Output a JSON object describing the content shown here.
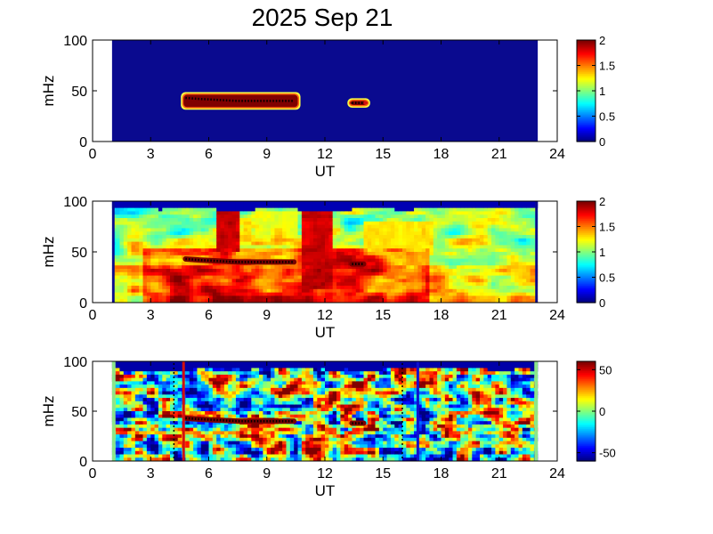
{
  "title": "2025 Sep 21",
  "colors": {
    "background": "#ffffff",
    "plot_fill": "#0a0a8f",
    "spectrum_green": "#8ee58a",
    "marker_red": "#d01010",
    "marker_blue": "#1010d0"
  },
  "colormap": "jet",
  "chart_data": [
    {
      "type": "heatmap",
      "name": "panel-1",
      "xlabel": "UT",
      "ylabel": "mHz",
      "xlim": [
        0,
        24
      ],
      "ylim": [
        0,
        100
      ],
      "xticks": [
        "0",
        "3",
        "6",
        "9",
        "12",
        "15",
        "18",
        "21",
        "24"
      ],
      "yticks": [
        "0",
        "50",
        "100"
      ],
      "data_range_ut": [
        1,
        23
      ],
      "colorbar": {
        "range": [
          0,
          2
        ],
        "ticks": [
          "0",
          "0.5",
          "1",
          "1.5",
          "2"
        ]
      },
      "features": [
        {
          "kind": "band",
          "ut": [
            4.7,
            10.6
          ],
          "mhz": [
            34,
            46
          ],
          "level": 2
        },
        {
          "kind": "band",
          "ut": [
            13.3,
            14.2
          ],
          "mhz": [
            36,
            40
          ],
          "level": 2
        }
      ],
      "tracks": [
        {
          "ut": [
            4.8,
            5.5,
            6.5,
            7.5,
            8.5,
            9.5,
            10.4
          ],
          "mhz": [
            43,
            42,
            41,
            40,
            40,
            40,
            40
          ]
        },
        {
          "ut": [
            13.4,
            13.7,
            14.0
          ],
          "mhz": [
            38,
            38,
            38
          ]
        }
      ]
    },
    {
      "type": "heatmap",
      "name": "panel-2",
      "xlabel": "UT",
      "ylabel": "mHz",
      "xlim": [
        0,
        24
      ],
      "ylim": [
        0,
        100
      ],
      "xticks": [
        "0",
        "3",
        "6",
        "9",
        "12",
        "15",
        "18",
        "21",
        "24"
      ],
      "yticks": [
        "0",
        "50",
        "100"
      ],
      "data_range_ut": [
        1,
        23
      ],
      "colorbar": {
        "range": [
          0,
          2
        ],
        "ticks": [
          "0",
          "0.5",
          "1",
          "1.5",
          "2"
        ]
      },
      "features": [
        {
          "kind": "blob",
          "ut": [
            6.4,
            7.6
          ],
          "mhz": [
            50,
            96
          ],
          "level": 2
        },
        {
          "kind": "blob",
          "ut": [
            10.8,
            12.3
          ],
          "mhz": [
            15,
            100
          ],
          "level": 2
        },
        {
          "kind": "patch",
          "ut": [
            14,
            17.5
          ],
          "mhz": [
            45,
            80
          ],
          "level": 1.4
        },
        {
          "kind": "patch",
          "ut": [
            8.5,
            10.5
          ],
          "mhz": [
            60,
            90
          ],
          "level": 1.3
        }
      ],
      "tracks": [
        {
          "ut": [
            4.8,
            5.5,
            6.5,
            7.5,
            8.5,
            9.5,
            10.4
          ],
          "mhz": [
            43,
            42,
            41,
            40,
            40,
            40,
            40
          ]
        },
        {
          "ut": [
            13.4,
            13.7,
            14.0
          ],
          "mhz": [
            38,
            38,
            38
          ]
        }
      ]
    },
    {
      "type": "heatmap",
      "name": "panel-3",
      "xlabel": "UT",
      "ylabel": "mHz",
      "xlim": [
        0,
        24
      ],
      "ylim": [
        0,
        100
      ],
      "xticks": [
        "0",
        "3",
        "6",
        "9",
        "12",
        "15",
        "18",
        "21",
        "24"
      ],
      "yticks": [
        "0",
        "50",
        "100"
      ],
      "data_range_ut": [
        1,
        23
      ],
      "colorbar": {
        "range": [
          -60,
          60
        ],
        "ticks": [
          "50",
          "0",
          "-50"
        ]
      },
      "tracks": [
        {
          "ut": [
            4.8,
            5.5,
            6.5,
            7.5,
            8.5,
            9.5,
            10.4
          ],
          "mhz": [
            43,
            42,
            41,
            40,
            40,
            40,
            40
          ]
        },
        {
          "ut": [
            13.4,
            13.7,
            14.0
          ],
          "mhz": [
            38,
            38,
            38
          ]
        }
      ],
      "vertical_lines": [
        {
          "ut": 4.7,
          "color": "red"
        },
        {
          "ut": 16.8,
          "color": "blue"
        }
      ],
      "dotted_lines_ut": [
        4.2,
        16.0
      ]
    }
  ]
}
